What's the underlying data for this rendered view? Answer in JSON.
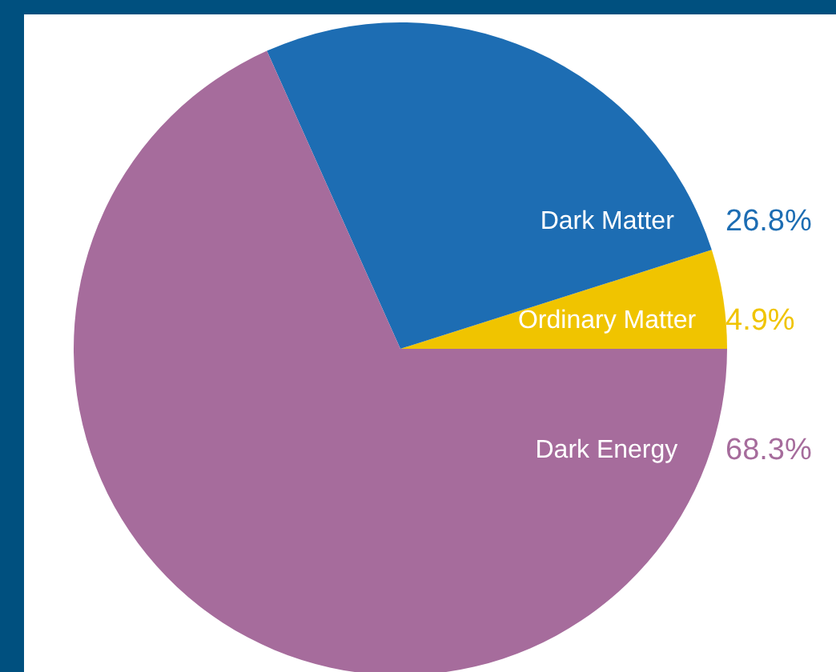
{
  "chart_data": {
    "type": "pie",
    "categories": [
      "Ordinary Matter",
      "Dark Matter",
      "Dark Energy"
    ],
    "values": [
      4.9,
      26.8,
      68.3
    ],
    "colors": [
      "#f0c400",
      "#1d6db3",
      "#a66c9c"
    ],
    "value_labels": [
      "4.9%",
      "26.8%",
      "68.3%"
    ]
  }
}
